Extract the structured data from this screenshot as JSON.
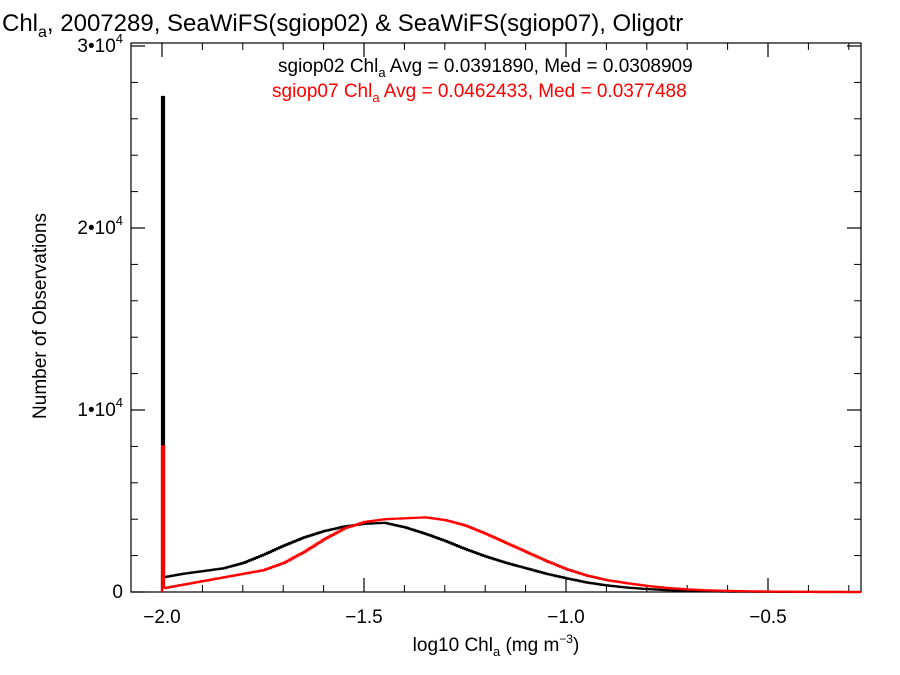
{
  "title": {
    "prefix": "Chl",
    "sub": "a",
    "rest": ", 2007289, SeaWiFS(sgiop02) & SeaWiFS(sgiop07), Oligotr"
  },
  "axes": {
    "xlabel": {
      "pre": "log10 Chl",
      "sub": "a",
      "mid": " (mg m",
      "sup": "−3",
      "post": ")"
    },
    "ylabel": "Number of Observations"
  },
  "legend": [
    {
      "color": "#000000",
      "pre": "sgiop02 Chl",
      "sub": "a",
      "post": " Avg = 0.0391890, Med = 0.0308909"
    },
    {
      "color": "#ff0000",
      "pre": "sgiop07 Chl",
      "sub": "a",
      "post": " Avg = 0.0462433, Med = 0.0377488"
    }
  ],
  "chart_data": {
    "type": "line",
    "xlim": [
      -2.1,
      -0.28
    ],
    "ylim": [
      0,
      30000
    ],
    "x_ticks": [
      {
        "value": -2.0,
        "label": "−2.0"
      },
      {
        "value": -1.5,
        "label": "−1.5"
      },
      {
        "value": -1.0,
        "label": "−1.0"
      },
      {
        "value": -0.5,
        "label": "−0.5"
      }
    ],
    "y_ticks": [
      {
        "value": 0,
        "base": "0",
        "exp": ""
      },
      {
        "value": 10000,
        "base": "1•10",
        "exp": "4"
      },
      {
        "value": 20000,
        "base": "2•10",
        "exp": "4"
      },
      {
        "value": 30000,
        "base": "3•10",
        "exp": "4"
      }
    ],
    "series": [
      {
        "name": "sgiop02",
        "color": "#000000",
        "spike": {
          "x": -2.0,
          "y": 27200
        },
        "x": [
          -2.0,
          -1.95,
          -1.9,
          -1.85,
          -1.8,
          -1.75,
          -1.7,
          -1.65,
          -1.6,
          -1.55,
          -1.5,
          -1.45,
          -1.4,
          -1.35,
          -1.3,
          -1.25,
          -1.2,
          -1.15,
          -1.1,
          -1.05,
          -1.0,
          -0.95,
          -0.9,
          -0.85,
          -0.8,
          -0.75,
          -0.7,
          -0.65,
          -0.6,
          -0.55,
          -0.5,
          -0.45,
          -0.4,
          -0.35,
          -0.3,
          -0.28
        ],
        "y": [
          800,
          1000,
          1150,
          1300,
          1600,
          2050,
          2550,
          3000,
          3350,
          3600,
          3750,
          3800,
          3550,
          3200,
          2800,
          2350,
          1950,
          1600,
          1300,
          1000,
          750,
          520,
          360,
          240,
          160,
          100,
          60,
          40,
          25,
          15,
          10,
          5,
          3,
          2,
          1,
          0
        ]
      },
      {
        "name": "sgiop07",
        "color": "#ff0000",
        "spike": {
          "x": -2.0,
          "y": 8000
        },
        "x": [
          -2.0,
          -1.95,
          -1.9,
          -1.85,
          -1.8,
          -1.75,
          -1.7,
          -1.65,
          -1.6,
          -1.55,
          -1.5,
          -1.45,
          -1.4,
          -1.35,
          -1.3,
          -1.25,
          -1.2,
          -1.15,
          -1.1,
          -1.05,
          -1.0,
          -0.95,
          -0.9,
          -0.85,
          -0.8,
          -0.75,
          -0.7,
          -0.65,
          -0.6,
          -0.55,
          -0.5,
          -0.45,
          -0.4,
          -0.35,
          -0.3,
          -0.28
        ],
        "y": [
          200,
          400,
          600,
          800,
          1000,
          1200,
          1600,
          2200,
          2900,
          3500,
          3850,
          4000,
          4050,
          4100,
          3950,
          3650,
          3200,
          2700,
          2200,
          1700,
          1250,
          900,
          650,
          480,
          330,
          220,
          140,
          90,
          60,
          40,
          25,
          15,
          8,
          4,
          2,
          1
        ]
      }
    ]
  }
}
